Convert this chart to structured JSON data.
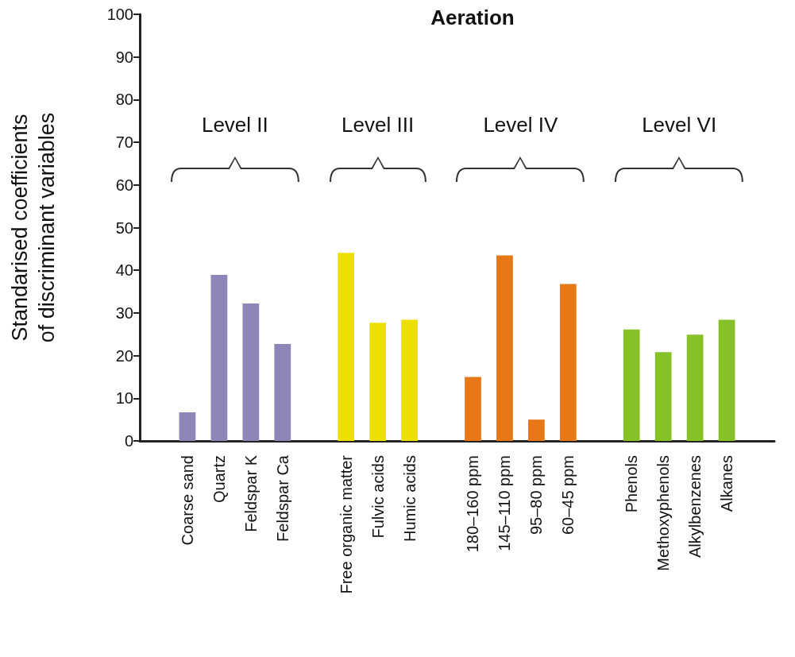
{
  "chart_data": {
    "type": "bar",
    "title": "Aeration",
    "ylabel": "Standarised coefficients\nof discriminant variables",
    "categories": [
      null,
      "Coarse sand",
      "Quartz",
      "Feldspar K",
      "Feldspar Ca",
      null,
      "Free organic matter",
      "Fulvic acids",
      "Humic acids",
      null,
      "180–160 ppm",
      "145–110 ppm",
      "95–80 ppm",
      "60–45 ppm",
      null,
      "Phenols",
      "Methoxyphenols",
      "Alkylbenzenes",
      "Alkanes",
      null
    ],
    "values": [
      null,
      6.7,
      38.9,
      32.2,
      22.7,
      null,
      44.1,
      27.7,
      28.4,
      null,
      15.0,
      43.5,
      5.0,
      36.8,
      null,
      26.1,
      20.8,
      24.9,
      28.4,
      null
    ],
    "colors": [
      null,
      "#8e86b8",
      "#8e86b8",
      "#8e86b8",
      "#8e86b8",
      null,
      "#ede000",
      "#ede000",
      "#ede000",
      null,
      "#e67818",
      "#e67818",
      "#e67818",
      "#e67818",
      null,
      "#86c128",
      "#86c128",
      "#86c128",
      "#86c128",
      null
    ],
    "annotations": [
      "Level II",
      "Level III",
      "Level IV",
      "Level VI"
    ],
    "ylim": [
      0,
      100
    ],
    "yticks": [
      0,
      10,
      20,
      30,
      40,
      50,
      60,
      70,
      80,
      90,
      100
    ],
    "grid": false
  }
}
